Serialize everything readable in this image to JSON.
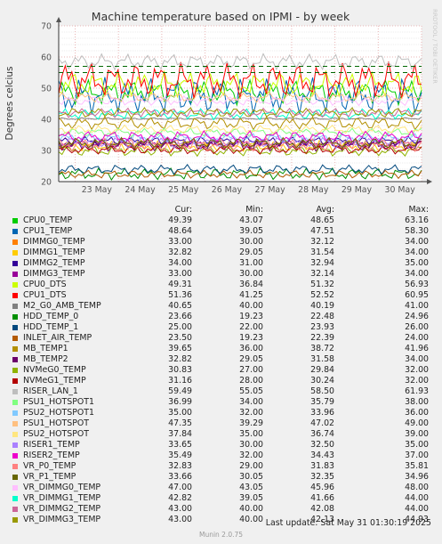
{
  "chart_data": {
    "type": "line",
    "title": "Machine temperature based on IPMI - by week",
    "ylabel": "Degrees celcius",
    "ylim": [
      20,
      70
    ],
    "yticks": [
      "20",
      "30",
      "40",
      "50",
      "60",
      "70"
    ],
    "xticks": [
      "23 May",
      "24 May",
      "25 May",
      "26 May",
      "27 May",
      "28 May",
      "29 May",
      "30 May"
    ],
    "thresholds": [
      55,
      57
    ],
    "grid": true,
    "side_label": "RRDTOOL / TOBI OETIKER",
    "columns": [
      "Cur:",
      "Min:",
      "Avg:",
      "Max:"
    ],
    "series": [
      {
        "name": "CPU0_TEMP",
        "color": "#00cc00",
        "cur": "49.39",
        "min": "43.07",
        "avg": "48.65",
        "max": "63.16"
      },
      {
        "name": "CPU1_TEMP",
        "color": "#0066b3",
        "cur": "48.64",
        "min": "39.05",
        "avg": "47.51",
        "max": "58.30"
      },
      {
        "name": "DIMMG0_TEMP",
        "color": "#ff8000",
        "cur": "33.00",
        "min": "30.00",
        "avg": "32.12",
        "max": "34.00"
      },
      {
        "name": "DIMMG1_TEMP",
        "color": "#ffcc00",
        "cur": "32.82",
        "min": "29.05",
        "avg": "31.54",
        "max": "34.00"
      },
      {
        "name": "DIMMG2_TEMP",
        "color": "#330099",
        "cur": "34.00",
        "min": "31.00",
        "avg": "32.94",
        "max": "35.00"
      },
      {
        "name": "DIMMG3_TEMP",
        "color": "#990099",
        "cur": "33.00",
        "min": "30.00",
        "avg": "32.14",
        "max": "34.00"
      },
      {
        "name": "CPU0_DTS",
        "color": "#ccff00",
        "cur": "49.31",
        "min": "36.84",
        "avg": "51.32",
        "max": "56.93"
      },
      {
        "name": "CPU1_DTS",
        "color": "#ff0000",
        "cur": "51.36",
        "min": "41.25",
        "avg": "52.52",
        "max": "60.95"
      },
      {
        "name": "M2_G0_AMB_TEMP",
        "color": "#808080",
        "cur": "40.65",
        "min": "40.00",
        "avg": "40.19",
        "max": "41.00"
      },
      {
        "name": "HDD_TEMP_0",
        "color": "#008f00",
        "cur": "23.66",
        "min": "19.23",
        "avg": "22.48",
        "max": "24.96"
      },
      {
        "name": "HDD_TEMP_1",
        "color": "#00487d",
        "cur": "25.00",
        "min": "22.00",
        "avg": "23.93",
        "max": "26.00"
      },
      {
        "name": "INLET_AIR_TEMP",
        "color": "#b35a00",
        "cur": "23.50",
        "min": "19.23",
        "avg": "22.39",
        "max": "24.00"
      },
      {
        "name": "MB_TEMP1",
        "color": "#b38f00",
        "cur": "39.65",
        "min": "36.00",
        "avg": "38.72",
        "max": "41.96"
      },
      {
        "name": "MB_TEMP2",
        "color": "#6b006b",
        "cur": "32.82",
        "min": "29.05",
        "avg": "31.58",
        "max": "34.00"
      },
      {
        "name": "NVMeG0_TEMP",
        "color": "#8fb300",
        "cur": "30.83",
        "min": "27.00",
        "avg": "29.84",
        "max": "32.00"
      },
      {
        "name": "NVMeG1_TEMP",
        "color": "#b30000",
        "cur": "31.16",
        "min": "28.00",
        "avg": "30.24",
        "max": "32.00"
      },
      {
        "name": "RISER_LAN_1",
        "color": "#bebebe",
        "cur": "59.49",
        "min": "55.05",
        "avg": "58.50",
        "max": "61.93"
      },
      {
        "name": "PSU1_HOTSPOT1",
        "color": "#80ff80",
        "cur": "36.99",
        "min": "34.00",
        "avg": "35.79",
        "max": "38.00"
      },
      {
        "name": "PSU2_HOTSPOT1",
        "color": "#80c9ff",
        "cur": "35.00",
        "min": "32.00",
        "avg": "33.96",
        "max": "36.00"
      },
      {
        "name": "PSU1_HOTSPOT",
        "color": "#ffc080",
        "cur": "47.35",
        "min": "39.29",
        "avg": "47.02",
        "max": "49.00"
      },
      {
        "name": "PSU2_HOTSPOT",
        "color": "#ffe680",
        "cur": "37.84",
        "min": "35.00",
        "avg": "36.74",
        "max": "39.00"
      },
      {
        "name": "RISER1_TEMP",
        "color": "#aa80ff",
        "cur": "33.65",
        "min": "30.00",
        "avg": "32.50",
        "max": "35.00"
      },
      {
        "name": "RISER2_TEMP",
        "color": "#ee00cc",
        "cur": "35.49",
        "min": "32.00",
        "avg": "34.43",
        "max": "37.00"
      },
      {
        "name": "VR_P0_TEMP",
        "color": "#ff8080",
        "cur": "32.83",
        "min": "29.00",
        "avg": "31.83",
        "max": "35.81"
      },
      {
        "name": "VR_P1_TEMP",
        "color": "#666600",
        "cur": "33.66",
        "min": "30.05",
        "avg": "32.35",
        "max": "34.96"
      },
      {
        "name": "VR_DIMMG0_TEMP",
        "color": "#ffbfff",
        "cur": "47.00",
        "min": "43.05",
        "avg": "45.96",
        "max": "48.00"
      },
      {
        "name": "VR_DIMMG1_TEMP",
        "color": "#00ffcc",
        "cur": "42.82",
        "min": "39.05",
        "avg": "41.66",
        "max": "44.00"
      },
      {
        "name": "VR_DIMMG2_TEMP",
        "color": "#cc6699",
        "cur": "43.00",
        "min": "40.00",
        "avg": "42.08",
        "max": "44.00"
      },
      {
        "name": "VR_DIMMG3_TEMP",
        "color": "#999900",
        "cur": "43.00",
        "min": "40.00",
        "avg": "42.13",
        "max": "44.93"
      }
    ]
  },
  "footer": {
    "last_update": "Last update: Sat May 31 01:30:19 2025",
    "munin": "Munin 2.0.75"
  }
}
